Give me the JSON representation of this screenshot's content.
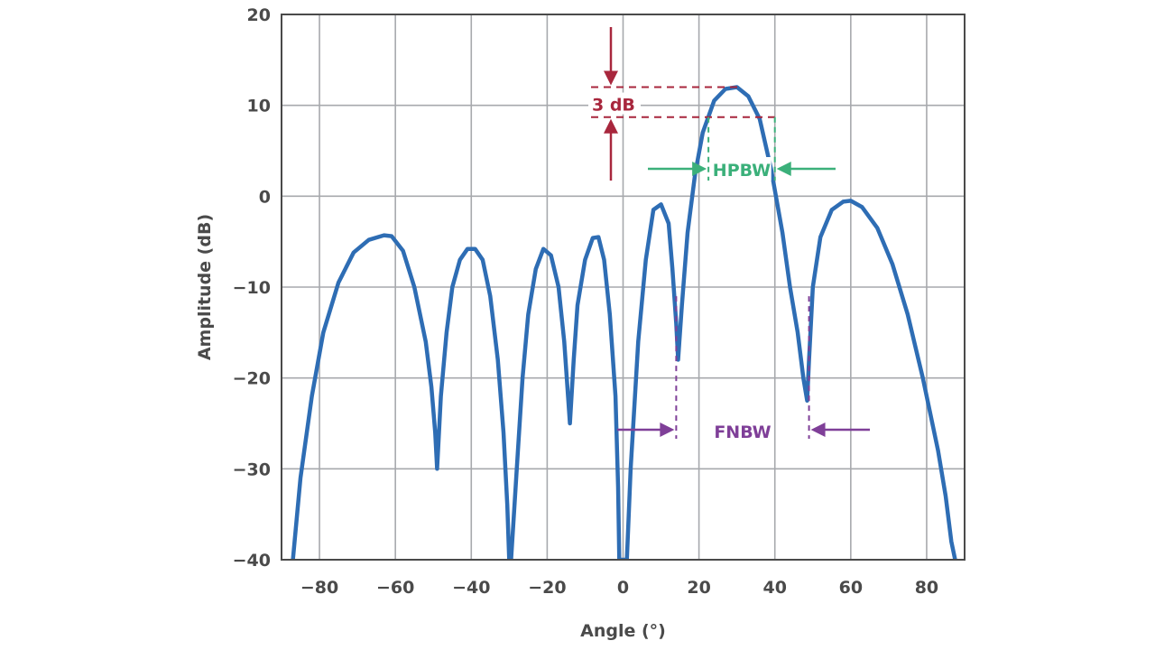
{
  "chart_data": {
    "type": "line",
    "xlabel": "Angle (°)",
    "ylabel": "Amplitude (dB)",
    "xlim": [
      -90,
      90
    ],
    "ylim": [
      -40,
      20
    ],
    "xticks": [
      "−80",
      "−60",
      "−40",
      "−20",
      "0",
      "20",
      "40",
      "60",
      "80"
    ],
    "yticks": [
      "20",
      "10",
      "0",
      "−10",
      "−20",
      "−30",
      "−40"
    ],
    "grid": true,
    "series": [
      {
        "color": "#2e6db4",
        "x": [
          -87,
          -85,
          -82,
          -79,
          -75,
          -71,
          -67,
          -63,
          -61,
          -58,
          -55,
          -52,
          -50.5,
          -49.5,
          -49,
          -48,
          -46.5,
          -45,
          -43,
          -41,
          -39,
          -37,
          -35,
          -33,
          -31.5,
          -30.5,
          -30,
          -29.5,
          -28,
          -26.5,
          -25,
          -23,
          -21,
          -19,
          -17,
          -15.5,
          -14.5,
          -14,
          -13,
          -12,
          -10,
          -8,
          -6.5,
          -5,
          -3.5,
          -2,
          -1.3,
          -1,
          -0.5,
          0.5,
          1,
          2,
          4,
          6,
          8,
          10,
          12,
          13,
          14,
          14.5,
          15.5,
          17,
          19,
          21,
          24,
          27,
          30,
          33,
          36,
          39,
          42,
          44,
          46,
          47.5,
          48.5,
          49,
          50,
          52,
          55,
          58,
          60,
          63,
          67,
          71,
          75,
          79,
          83,
          85,
          86.5,
          87.5
        ],
        "y": [
          -40,
          -31,
          -22,
          -15,
          -9.5,
          -6.2,
          -4.8,
          -4.3,
          -4.4,
          -6,
          -10,
          -16,
          -21,
          -26,
          -30,
          -22,
          -15,
          -10,
          -7,
          -5.8,
          -5.8,
          -7,
          -11,
          -18,
          -26,
          -34,
          -40,
          -40,
          -30,
          -20,
          -13,
          -8,
          -5.8,
          -6.5,
          -10,
          -16,
          -22,
          -25,
          -18,
          -12,
          -7,
          -4.6,
          -4.5,
          -7,
          -13,
          -22,
          -32,
          -40,
          -40,
          -40,
          -40,
          -30,
          -16,
          -7,
          -1.5,
          -0.9,
          -3,
          -8,
          -14,
          -18,
          -12,
          -4,
          2.5,
          7,
          10.5,
          11.8,
          12,
          11,
          8.5,
          3,
          -4,
          -10,
          -15,
          -20,
          -22.5,
          -18,
          -10,
          -4.5,
          -1.5,
          -0.6,
          -0.5,
          -1.2,
          -3.5,
          -7.5,
          -13,
          -20,
          -28,
          -33,
          -38,
          -40
        ]
      }
    ],
    "annotations": {
      "db_label": "3 dB",
      "hpbw_label": "HPBW",
      "fnbw_label": "FNBW",
      "colors": {
        "db": "#a8273d",
        "hpbw": "#3bb07a",
        "fnbw": "#7f3f98"
      }
    }
  }
}
